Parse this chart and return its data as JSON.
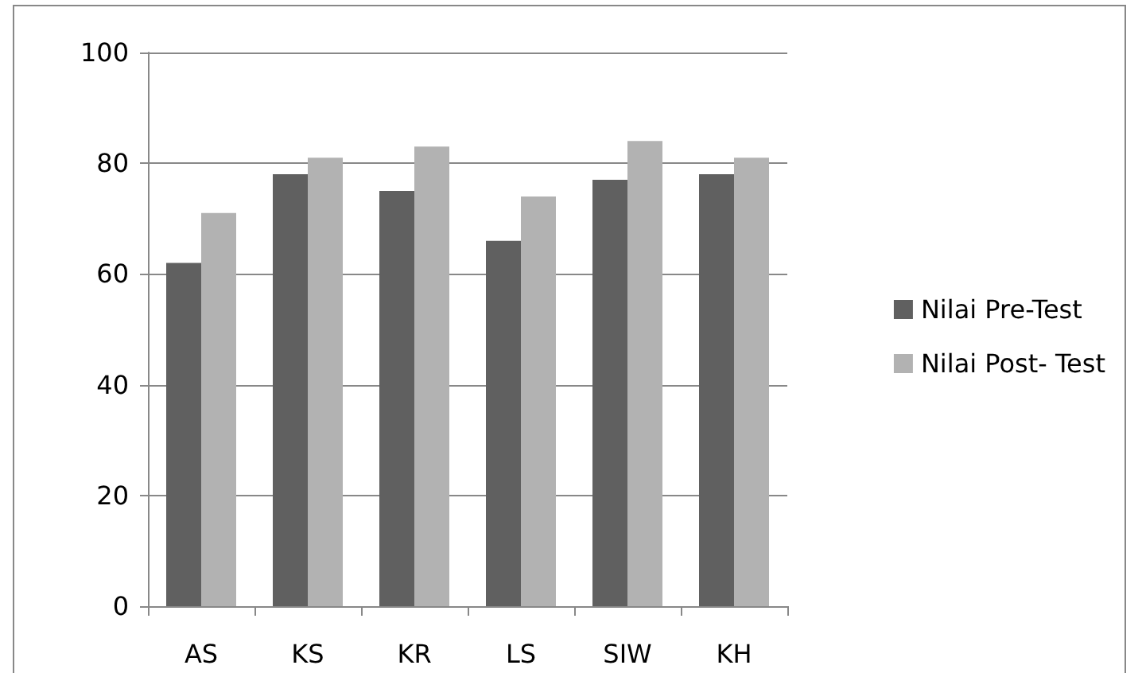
{
  "chart_data": {
    "type": "bar",
    "categories": [
      "AS",
      "KS",
      "KR",
      "LS",
      "SIW",
      "KH"
    ],
    "series": [
      {
        "name": "Nilai Pre-Test",
        "color": "#606060",
        "values": [
          62,
          78,
          75,
          66,
          77,
          78
        ]
      },
      {
        "name": "Nilai Post- Test",
        "color": "#b2b2b2",
        "values": [
          71,
          81,
          83,
          74,
          84,
          81
        ]
      }
    ],
    "ylim": [
      0,
      100
    ],
    "yticks": [
      0,
      20,
      40,
      60,
      80,
      100
    ],
    "grid": "y",
    "legend": "right"
  }
}
